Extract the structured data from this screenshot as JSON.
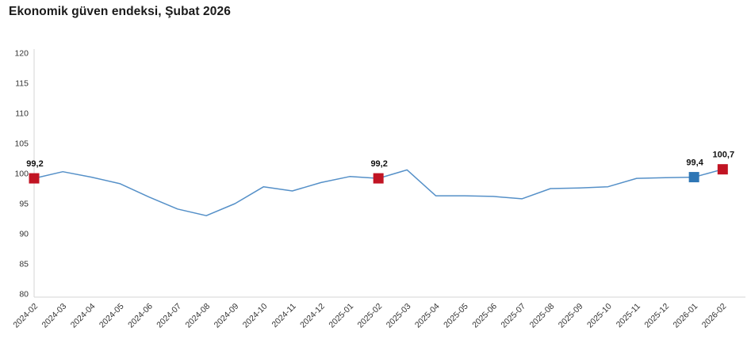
{
  "page": {
    "title": "Ekonomik güven endeksi, Şubat 2026"
  },
  "chart_data": {
    "type": "line",
    "title": "Ekonomik güven endeksi, Şubat 2026",
    "categories": [
      "2024-02",
      "2024-03",
      "2024-04",
      "2024-05",
      "2024-06",
      "2024-07",
      "2024-08",
      "2024-09",
      "2024-10",
      "2024-11",
      "2024-12",
      "2025-01",
      "2025-02",
      "2025-03",
      "2025-04",
      "2025-05",
      "2025-06",
      "2025-07",
      "2025-08",
      "2025-09",
      "2025-10",
      "2025-11",
      "2025-12",
      "2026-01",
      "2026-02"
    ],
    "values": [
      99.2,
      100.3,
      99.4,
      98.3,
      96.1,
      94.1,
      93.0,
      95.0,
      97.8,
      97.1,
      98.5,
      99.5,
      99.2,
      100.6,
      96.3,
      96.3,
      96.2,
      95.8,
      97.5,
      97.6,
      97.8,
      99.2,
      99.3,
      99.4,
      100.7
    ],
    "ylim": [
      80,
      120
    ],
    "yticks": [
      80,
      85,
      90,
      95,
      100,
      105,
      110,
      115,
      120
    ],
    "grid": false,
    "legend": "none",
    "xlabel": "",
    "ylabel": "",
    "line_color": "#5590c8",
    "axis_line_color": "#d6d6d6",
    "annotated_points": [
      {
        "index": 0,
        "label": "99,2",
        "marker_color": "#c11423"
      },
      {
        "index": 12,
        "label": "99,2",
        "marker_color": "#c11423"
      },
      {
        "index": 23,
        "label": "99,4",
        "marker_color": "#2e76b5"
      },
      {
        "index": 24,
        "label": "100,7",
        "marker_color": "#c11423"
      }
    ]
  }
}
